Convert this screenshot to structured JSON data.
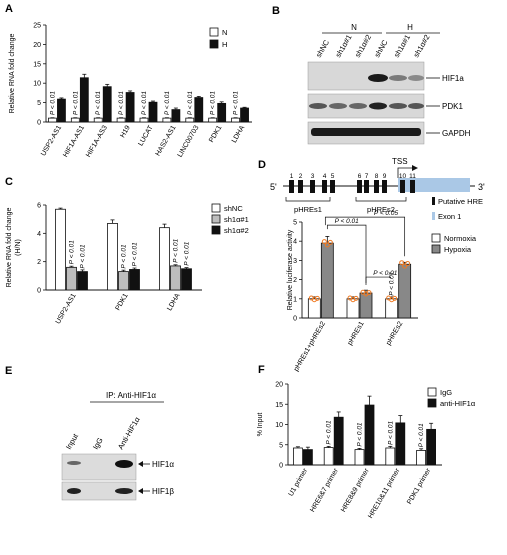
{
  "panels": {
    "A": "A",
    "B": "B",
    "C": "C",
    "D": "D",
    "E": "E",
    "F": "F"
  },
  "colors": {
    "white": "#ffffff",
    "black": "#111111",
    "gray": "#bdbdbd",
    "orange": "#f07a22",
    "exon": "#aac8e6"
  },
  "chart_data": [
    {
      "id": "A",
      "type": "bar",
      "ylabel": "Relative RNA fold change",
      "ylim": [
        0,
        25
      ],
      "yticks": [
        0,
        5,
        10,
        15,
        20,
        25
      ],
      "categories": [
        "USP2-AS1",
        "HIF1A-AS1",
        "HIF1A-AS3",
        "H19",
        "LUCAT",
        "HAS2-AS1",
        "LINC00703",
        "PDK1",
        "LDHA"
      ],
      "series": [
        {
          "name": "N",
          "fill": "#ffffff",
          "values": [
            1,
            1,
            1,
            1,
            1,
            1,
            1,
            1,
            1
          ],
          "err": [
            0.1,
            0.1,
            0.1,
            0.1,
            0.1,
            0.1,
            0.1,
            0.1,
            0.1
          ]
        },
        {
          "name": "H",
          "fill": "#111111",
          "values": [
            5.9,
            11.4,
            9.1,
            7.6,
            5.1,
            3.2,
            6.3,
            4.8,
            3.6
          ],
          "err": [
            0.3,
            0.9,
            0.6,
            0.4,
            0.3,
            0.4,
            0.3,
            0.4,
            0.2
          ]
        }
      ],
      "pvalue": "P < 0.01"
    },
    {
      "id": "C",
      "type": "bar",
      "ylabel": "Relative RNA fold change",
      "ylabel2": "(H/N)",
      "ylim": [
        0,
        6
      ],
      "yticks": [
        0,
        2,
        4,
        6
      ],
      "categories": [
        "USP2-AS1",
        "PDK1",
        "LDHA"
      ],
      "series": [
        {
          "name": "shNC",
          "fill": "#ffffff",
          "values": [
            5.7,
            4.7,
            4.4
          ],
          "err": [
            0.08,
            0.25,
            0.25
          ]
        },
        {
          "name": "sh1α#1",
          "fill": "#bdbdbd",
          "values": [
            1.6,
            1.3,
            1.7
          ],
          "err": [
            0.08,
            0.1,
            0.08
          ]
        },
        {
          "name": "sh1α#2",
          "fill": "#111111",
          "values": [
            1.3,
            1.45,
            1.5
          ],
          "err": [
            0.12,
            0.1,
            0.08
          ]
        }
      ],
      "pvalue": "P < 0.01"
    },
    {
      "id": "D",
      "type": "bar",
      "ylabel": "Relative luciferase activity",
      "ylim": [
        0,
        5
      ],
      "yticks": [
        0,
        1,
        2,
        3,
        4,
        5
      ],
      "categories": [
        "pHREs1+pHREs2",
        "pHREs1",
        "pHREs2"
      ],
      "series": [
        {
          "name": "Normoxia",
          "fill": "#ffffff",
          "values": [
            1,
            1,
            1
          ],
          "err": [
            0.1,
            0.1,
            0.1
          ]
        },
        {
          "name": "Hypoxia",
          "fill": "#888888",
          "values": [
            3.9,
            1.3,
            2.8
          ],
          "err": [
            0.35,
            0.15,
            0.1
          ]
        }
      ],
      "comparisons": [
        "P < 0.01",
        "P < 0.05",
        "P < 0.01",
        "P < 0.01"
      ]
    },
    {
      "id": "F",
      "type": "bar",
      "ylabel": "% Input",
      "ylim": [
        0,
        20
      ],
      "yticks": [
        0,
        5,
        10,
        15,
        20
      ],
      "categories": [
        "U1 primer",
        "HRE6&7 primer",
        "HRE8&9 primer",
        "HRE10&11 primer",
        "PDK1 primer"
      ],
      "series": [
        {
          "name": "IgG",
          "fill": "#ffffff",
          "values": [
            4.2,
            4.3,
            3.8,
            4.2,
            3.6
          ],
          "err": [
            0.3,
            0.3,
            0.3,
            0.4,
            0.4
          ]
        },
        {
          "name": "anti-HIF1α",
          "fill": "#111111",
          "values": [
            3.8,
            11.8,
            14.8,
            10.4,
            8.8
          ],
          "err": [
            0.6,
            1.3,
            2.2,
            1.8,
            1.5
          ]
        }
      ],
      "pvalue": "P < 0.01"
    }
  ],
  "blotB": {
    "groups": [
      "N",
      "H"
    ],
    "lanes": [
      "shNC",
      "sh1α#1",
      "sh1α#2",
      "shNC",
      "sh1α#1",
      "sh1α#2"
    ],
    "bands": [
      "HIF1a",
      "PDK1",
      "GAPDH"
    ]
  },
  "diagramD": {
    "five": "5'",
    "three": "3'",
    "tss": "TSS",
    "nums": [
      "1",
      "2",
      "3",
      "4",
      "5",
      "6",
      "7",
      "8",
      "9",
      "10",
      "11"
    ],
    "groups": [
      "pHREs1",
      "pHREs2"
    ],
    "legend_hre": "Putative HRE",
    "legend_exon": "Exon 1"
  },
  "blotE": {
    "ip": "IP: Anti-HIF1α",
    "lanes": [
      "Input",
      "IgG",
      "Anti-HIF1α"
    ],
    "bands": [
      "HIF1α",
      "HIF1β"
    ]
  }
}
